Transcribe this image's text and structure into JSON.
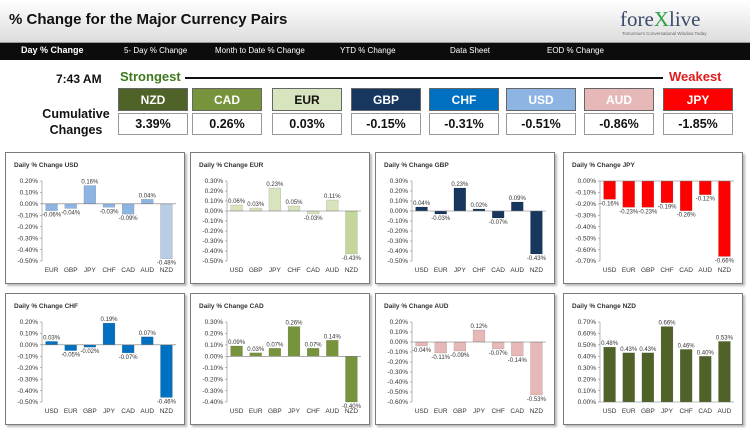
{
  "header": {
    "title": "% Change for the Major Currency Pairs",
    "logo_text_a": "fore",
    "logo_text_x": "X",
    "logo_text_b": "live",
    "logo_tagline": "Tomorrow's Conversational Window Today"
  },
  "nav": {
    "items": [
      "Day % Change",
      "5- Day % Change",
      "Month to Date % Change",
      "YTD % Change",
      "Data Sheet",
      "EOD % Change"
    ]
  },
  "summary": {
    "time": "7:43 AM",
    "strongest_label": "Strongest",
    "weakest_label": "Weakest",
    "cumulative_label_1": "Cumulative",
    "cumulative_label_2": "Changes",
    "currencies": [
      {
        "code": "NZD",
        "value": "3.39%",
        "color": "#4f6228"
      },
      {
        "code": "CAD",
        "value": "0.26%",
        "color": "#77933c"
      },
      {
        "code": "EUR",
        "value": "0.03%",
        "color": "#d7e4bd"
      },
      {
        "code": "GBP",
        "value": "-0.15%",
        "color": "#17375e"
      },
      {
        "code": "CHF",
        "value": "-0.31%",
        "color": "#0070c0"
      },
      {
        "code": "USD",
        "value": "-0.51%",
        "color": "#8eb4e3"
      },
      {
        "code": "AUD",
        "value": "-0.86%",
        "color": "#e6b9b8"
      },
      {
        "code": "JPY",
        "value": "-1.85%",
        "color": "#ff0000"
      }
    ]
  },
  "chart_data": [
    {
      "type": "bar",
      "title": "Daily % Change USD",
      "categories": [
        "EUR",
        "GBP",
        "JPY",
        "CHF",
        "CAD",
        "AUD",
        "NZD"
      ],
      "values": [
        -0.06,
        -0.04,
        0.16,
        -0.03,
        -0.09,
        0.04,
        -0.48
      ],
      "value_labels": [
        "-0.06%",
        "-0.04%",
        "0.16%",
        "-0.03%",
        "-0.09%",
        "0.04%",
        "-0.48%"
      ],
      "ylim": [
        -0.5,
        0.2
      ],
      "yticks": [
        0.2,
        0.1,
        0,
        -0.1,
        -0.2,
        -0.3,
        -0.4,
        -0.5
      ],
      "ytick_labels": [
        "0.20%",
        "0.10%",
        "0.00%",
        "-0.10%",
        "-0.20%",
        "-0.30%",
        "-0.40%",
        "-0.50%"
      ],
      "colors": [
        "#8eb4e3",
        "#8eb4e3",
        "#8eb4e3",
        "#8eb4e3",
        "#8eb4e3",
        "#8eb4e3",
        "#b8cce4"
      ]
    },
    {
      "type": "bar",
      "title": "Daily % Change EUR",
      "categories": [
        "USD",
        "GBP",
        "JPY",
        "CHF",
        "CAD",
        "AUD",
        "NZD"
      ],
      "values": [
        0.06,
        0.03,
        0.23,
        0.05,
        -0.03,
        0.11,
        -0.43
      ],
      "value_labels": [
        "0.06%",
        "0.03%",
        "0.23%",
        "0.05%",
        "-0.03%",
        "0.11%",
        "-0.43%"
      ],
      "ylim": [
        -0.5,
        0.3
      ],
      "yticks": [
        0.3,
        0.2,
        0.1,
        0,
        -0.1,
        -0.2,
        -0.3,
        -0.4,
        -0.5
      ],
      "ytick_labels": [
        "0.30%",
        "0.20%",
        "0.10%",
        "0.00%",
        "-0.10%",
        "-0.20%",
        "-0.30%",
        "-0.40%",
        "-0.50%"
      ],
      "colors": [
        "#d7e4bd",
        "#d7e4bd",
        "#d7e4bd",
        "#d7e4bd",
        "#d7e4bd",
        "#d7e4bd",
        "#c3d69b"
      ]
    },
    {
      "type": "bar",
      "title": "Daily % Change GBP",
      "categories": [
        "USD",
        "EUR",
        "JPY",
        "CHF",
        "CAD",
        "AUD",
        "NZD"
      ],
      "values": [
        0.04,
        -0.03,
        0.23,
        0.02,
        -0.07,
        0.09,
        -0.43
      ],
      "value_labels": [
        "0.04%",
        "-0.03%",
        "0.23%",
        "0.02%",
        "-0.07%",
        "0.09%",
        "-0.43%"
      ],
      "ylim": [
        -0.5,
        0.3
      ],
      "yticks": [
        0.3,
        0.2,
        0.1,
        0,
        -0.1,
        -0.2,
        -0.3,
        -0.4,
        -0.5
      ],
      "ytick_labels": [
        "0.30%",
        "0.20%",
        "0.10%",
        "0.00%",
        "-0.10%",
        "-0.20%",
        "-0.30%",
        "-0.40%",
        "-0.50%"
      ],
      "colors": [
        "#17375e",
        "#17375e",
        "#17375e",
        "#17375e",
        "#17375e",
        "#17375e",
        "#17375e"
      ]
    },
    {
      "type": "bar",
      "title": "Daily % Change JPY",
      "categories": [
        "USD",
        "EUR",
        "GBP",
        "CHF",
        "CAD",
        "AUD",
        "NZD"
      ],
      "values": [
        -0.16,
        -0.23,
        -0.23,
        -0.19,
        -0.26,
        -0.12,
        -0.66
      ],
      "value_labels": [
        "-0.16%",
        "-0.23%",
        "-0.23%",
        "-0.19%",
        "-0.26%",
        "-0.12%",
        "-0.66%"
      ],
      "ylim": [
        -0.7,
        0
      ],
      "yticks": [
        0,
        -0.1,
        -0.2,
        -0.3,
        -0.4,
        -0.5,
        -0.6,
        -0.7
      ],
      "ytick_labels": [
        "0.00%",
        "-0.10%",
        "-0.20%",
        "-0.30%",
        "-0.40%",
        "-0.50%",
        "-0.60%",
        "-0.70%"
      ],
      "colors": [
        "#ff0000",
        "#ff0000",
        "#ff0000",
        "#ff0000",
        "#ff0000",
        "#ff0000",
        "#ff0000"
      ]
    },
    {
      "type": "bar",
      "title": "Daily % Change CHF",
      "categories": [
        "USD",
        "EUR",
        "GBP",
        "JPY",
        "CAD",
        "AUD",
        "NZD"
      ],
      "values": [
        0.03,
        -0.05,
        -0.02,
        0.19,
        -0.07,
        0.07,
        -0.46
      ],
      "value_labels": [
        "0.03%",
        "-0.05%",
        "-0.02%",
        "0.19%",
        "-0.07%",
        "0.07%",
        "-0.46%"
      ],
      "ylim": [
        -0.5,
        0.2
      ],
      "yticks": [
        0.2,
        0.1,
        0,
        -0.1,
        -0.2,
        -0.3,
        -0.4,
        -0.5
      ],
      "ytick_labels": [
        "0.20%",
        "0.10%",
        "0.00%",
        "-0.10%",
        "-0.20%",
        "-0.30%",
        "-0.40%",
        "-0.50%"
      ],
      "colors": [
        "#0070c0",
        "#0070c0",
        "#0070c0",
        "#0070c0",
        "#0070c0",
        "#0070c0",
        "#0070c0"
      ]
    },
    {
      "type": "bar",
      "title": "Daily % Change CAD",
      "categories": [
        "USD",
        "EUR",
        "GBP",
        "JPY",
        "CHF",
        "AUD",
        "NZD"
      ],
      "values": [
        0.09,
        0.03,
        0.07,
        0.26,
        0.07,
        0.14,
        -0.4
      ],
      "value_labels": [
        "0.09%",
        "0.03%",
        "0.07%",
        "0.26%",
        "0.07%",
        "0.14%",
        "-0.40%"
      ],
      "ylim": [
        -0.4,
        0.3
      ],
      "yticks": [
        0.3,
        0.2,
        0.1,
        0,
        -0.1,
        -0.2,
        -0.3,
        -0.4
      ],
      "ytick_labels": [
        "0.30%",
        "0.20%",
        "0.10%",
        "0.00%",
        "-0.10%",
        "-0.20%",
        "-0.30%",
        "-0.40%"
      ],
      "colors": [
        "#77933c",
        "#77933c",
        "#77933c",
        "#77933c",
        "#77933c",
        "#77933c",
        "#77933c"
      ]
    },
    {
      "type": "bar",
      "title": "Daily % Change AUD",
      "categories": [
        "USD",
        "EUR",
        "GBP",
        "JPY",
        "CHF",
        "CAD",
        "NZD"
      ],
      "values": [
        -0.04,
        -0.11,
        -0.09,
        0.12,
        -0.07,
        -0.14,
        -0.53
      ],
      "value_labels": [
        "-0.04%",
        "-0.11%",
        "-0.09%",
        "0.12%",
        "-0.07%",
        "-0.14%",
        "-0.53%"
      ],
      "ylim": [
        -0.6,
        0.2
      ],
      "yticks": [
        0.2,
        0.1,
        0,
        -0.1,
        -0.2,
        -0.3,
        -0.4,
        -0.5,
        -0.6
      ],
      "ytick_labels": [
        "0.20%",
        "0.10%",
        "0.00%",
        "-0.10%",
        "-0.20%",
        "-0.30%",
        "-0.40%",
        "-0.50%",
        "-0.60%"
      ],
      "colors": [
        "#e6b9b8",
        "#e6b9b8",
        "#e6b9b8",
        "#e6b9b8",
        "#e6b9b8",
        "#e6b9b8",
        "#e6b9b8"
      ]
    },
    {
      "type": "bar",
      "title": "Daily % Change NZD",
      "categories": [
        "USD",
        "EUR",
        "GBP",
        "JPY",
        "CHF",
        "CAD",
        "AUD"
      ],
      "values": [
        0.48,
        0.43,
        0.43,
        0.66,
        0.46,
        0.4,
        0.53
      ],
      "value_labels": [
        "0.48%",
        "0.43%",
        "0.43%",
        "0.66%",
        "0.46%",
        "0.40%",
        "0.53%"
      ],
      "ylim": [
        0,
        0.7
      ],
      "yticks": [
        0.7,
        0.6,
        0.5,
        0.4,
        0.3,
        0.2,
        0.1,
        0
      ],
      "ytick_labels": [
        "0.70%",
        "0.60%",
        "0.50%",
        "0.40%",
        "0.30%",
        "0.20%",
        "0.10%",
        "0.00%"
      ],
      "colors": [
        "#4f6228",
        "#4f6228",
        "#4f6228",
        "#4f6228",
        "#4f6228",
        "#4f6228",
        "#4f6228"
      ]
    }
  ]
}
